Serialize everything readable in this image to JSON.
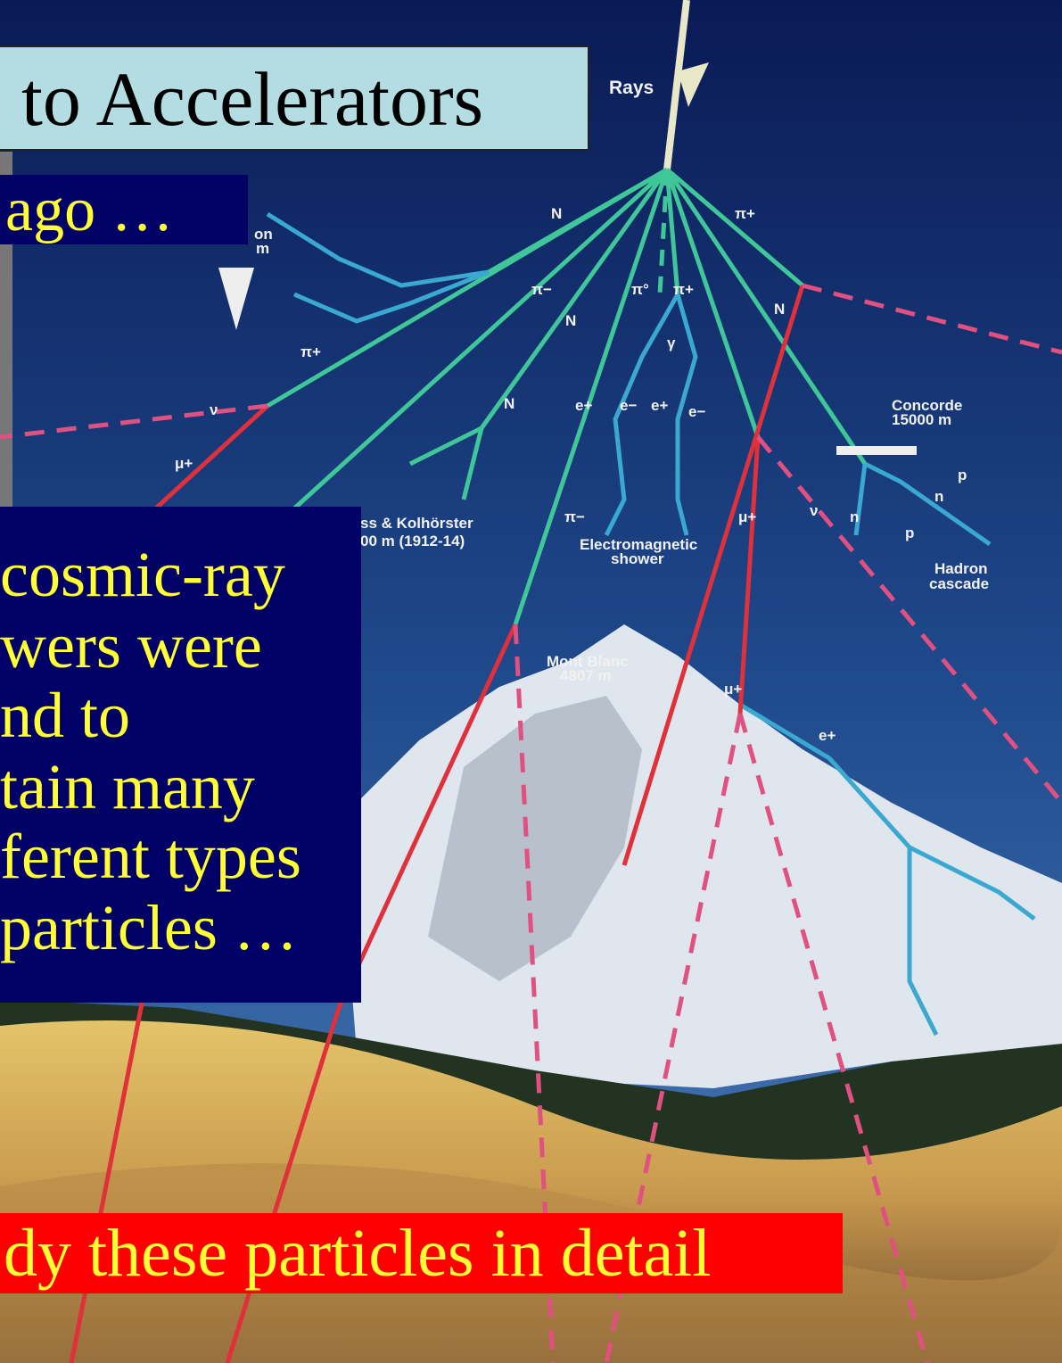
{
  "header": {
    "title": "to Accelerators"
  },
  "intro": "ago …",
  "body_lines": [
    "cosmic-ray",
    "wers were",
    "nd to",
    "tain many",
    "ferent types",
    "particles …"
  ],
  "banner": "dy these particles in detail",
  "diagram_labels": [
    "Rays",
    "on",
    "m",
    "N",
    "π+",
    "π−",
    "π°",
    "π+",
    "N",
    "N",
    "γ",
    "π+",
    "ν",
    "N",
    "e+",
    "e−",
    "e+",
    "e−",
    "μ+",
    "Concorde",
    "15000 m",
    "p",
    "n",
    "n",
    "p",
    "ν",
    "μ+",
    "π−",
    "ss & Kolhörster",
    "00 m (1912-14)",
    "Electromagnetic",
    "shower",
    "Hadron",
    "cascade",
    "Mont Blanc",
    "4807 m",
    "μ+",
    "e+"
  ]
}
